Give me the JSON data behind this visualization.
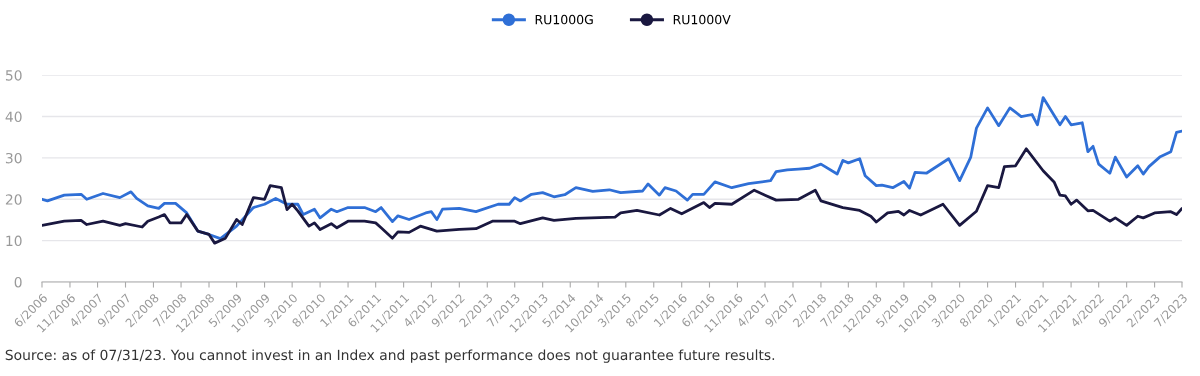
{
  "chart_data": {
    "type": "line",
    "legend": "top",
    "grid": "y",
    "marker": "none",
    "line_style": "solid",
    "ylim": [
      0,
      50
    ],
    "yticks": [
      0,
      10,
      20,
      30,
      40,
      50
    ],
    "xlim": [
      "2006-06",
      "2023-07"
    ],
    "xticks": [
      {
        "value": "2006-06",
        "label": "6/2006"
      },
      {
        "value": "2006-11",
        "label": "11/2006"
      },
      {
        "value": "2007-04",
        "label": "4/2007"
      },
      {
        "value": "2007-09",
        "label": "9/2007"
      },
      {
        "value": "2008-02",
        "label": "2/2008"
      },
      {
        "value": "2008-07",
        "label": "7/2008"
      },
      {
        "value": "2008-12",
        "label": "12/2008"
      },
      {
        "value": "2009-05",
        "label": "5/2009"
      },
      {
        "value": "2009-10",
        "label": "10/2009"
      },
      {
        "value": "2010-03",
        "label": "3/2010"
      },
      {
        "value": "2010-08",
        "label": "8/2010"
      },
      {
        "value": "2011-01",
        "label": "1/2011"
      },
      {
        "value": "2011-06",
        "label": "6/2011"
      },
      {
        "value": "2011-11",
        "label": "11/2011"
      },
      {
        "value": "2012-04",
        "label": "4/2012"
      },
      {
        "value": "2012-09",
        "label": "9/2012"
      },
      {
        "value": "2013-02",
        "label": "2/2013"
      },
      {
        "value": "2013-07",
        "label": "7/2013"
      },
      {
        "value": "2013-12",
        "label": "12/2013"
      },
      {
        "value": "2014-05",
        "label": "5/2014"
      },
      {
        "value": "2014-10",
        "label": "10/2014"
      },
      {
        "value": "2015-03",
        "label": "3/2015"
      },
      {
        "value": "2015-08",
        "label": "8/2015"
      },
      {
        "value": "2016-01",
        "label": "1/2016"
      },
      {
        "value": "2016-06",
        "label": "6/2016"
      },
      {
        "value": "2016-11",
        "label": "11/2016"
      },
      {
        "value": "2017-04",
        "label": "4/2017"
      },
      {
        "value": "2017-09",
        "label": "9/2017"
      },
      {
        "value": "2018-02",
        "label": "2/2018"
      },
      {
        "value": "2018-07",
        "label": "7/2018"
      },
      {
        "value": "2018-12",
        "label": "12/2018"
      },
      {
        "value": "2019-05",
        "label": "5/2019"
      },
      {
        "value": "2019-10",
        "label": "10/2019"
      },
      {
        "value": "2020-03",
        "label": "3/2020"
      },
      {
        "value": "2020-08",
        "label": "8/2020"
      },
      {
        "value": "2021-01",
        "label": "1/2021"
      },
      {
        "value": "2021-06",
        "label": "6/2021"
      },
      {
        "value": "2021-11",
        "label": "11/2021"
      },
      {
        "value": "2022-04",
        "label": "4/2022"
      },
      {
        "value": "2022-09",
        "label": "9/2022"
      },
      {
        "value": "2023-02",
        "label": "2/2023"
      },
      {
        "value": "2023-07",
        "label": "7/2023"
      }
    ],
    "annotations": [
      "Source: as of 07/31/23. You cannot invest in an Index and past performance does not guarantee future results."
    ],
    "series": [
      {
        "name": "RU1000G",
        "color": "#2f6fd6",
        "x": [
          "2006-06",
          "2006-07",
          "2006-10",
          "2007-01",
          "2007-02",
          "2007-05",
          "2007-08",
          "2007-10",
          "2007-11",
          "2008-01",
          "2008-03",
          "2008-04",
          "2008-06",
          "2008-08",
          "2008-10",
          "2008-12",
          "2009-02",
          "2009-05",
          "2009-08",
          "2009-10",
          "2009-12",
          "2010-02",
          "2010-04",
          "2010-05",
          "2010-07",
          "2010-08",
          "2010-10",
          "2010-11",
          "2011-01",
          "2011-04",
          "2011-06",
          "2011-07",
          "2011-09",
          "2011-10",
          "2011-12",
          "2012-03",
          "2012-04",
          "2012-05",
          "2012-06",
          "2012-09",
          "2012-12",
          "2013-04",
          "2013-06",
          "2013-07",
          "2013-08",
          "2013-10",
          "2013-12",
          "2014-02",
          "2014-04",
          "2014-06",
          "2014-09",
          "2014-12",
          "2015-02",
          "2015-06",
          "2015-07",
          "2015-09",
          "2015-10",
          "2015-12",
          "2016-02",
          "2016-03",
          "2016-05",
          "2016-07",
          "2016-10",
          "2017-01",
          "2017-05",
          "2017-06",
          "2017-08",
          "2017-10",
          "2017-12",
          "2018-02",
          "2018-05",
          "2018-06",
          "2018-07",
          "2018-09",
          "2018-10",
          "2018-12",
          "2019-01",
          "2019-03",
          "2019-05",
          "2019-06",
          "2019-07",
          "2019-09",
          "2020-01",
          "2020-03",
          "2020-05",
          "2020-06",
          "2020-08",
          "2020-10",
          "2020-12",
          "2021-02",
          "2021-04",
          "2021-05",
          "2021-06",
          "2021-09",
          "2021-10",
          "2021-11",
          "2022-01",
          "2022-02",
          "2022-03",
          "2022-04",
          "2022-06",
          "2022-07",
          "2022-09",
          "2022-11",
          "2022-12",
          "2023-01",
          "2023-03",
          "2023-05",
          "2023-06",
          "2023-07"
        ],
        "values": [
          20,
          19.6,
          21,
          21.2,
          20,
          21.4,
          20.4,
          21.8,
          20.2,
          18.4,
          17.8,
          19,
          19,
          16.7,
          12.3,
          11.5,
          10.5,
          13.5,
          18,
          18.8,
          20.2,
          18.8,
          18.8,
          16.3,
          17.6,
          15.5,
          17.6,
          17,
          18,
          18,
          17,
          18,
          14.6,
          16,
          15.1,
          16.7,
          17,
          15.1,
          17.6,
          17.8,
          17,
          18.8,
          18.8,
          20.4,
          19.6,
          21.2,
          21.6,
          20.6,
          21.1,
          22.8,
          21.9,
          22.3,
          21.6,
          22,
          23.7,
          21,
          22.8,
          22,
          19.8,
          21.2,
          21.2,
          24.2,
          22.8,
          23.8,
          24.5,
          26.7,
          27.1,
          27.3,
          27.5,
          28.5,
          26.1,
          29.4,
          28.8,
          29.8,
          25.7,
          23.3,
          23.4,
          22.8,
          24.3,
          22.7,
          26.5,
          26.3,
          29.8,
          24.5,
          30.2,
          37.2,
          42.1,
          37.8,
          42.1,
          40,
          40.5,
          38,
          44.6,
          38,
          40,
          38,
          38.5,
          31.5,
          32.8,
          28.5,
          26.3,
          30.2,
          25.4,
          28.1,
          26.1,
          27.9,
          30.2,
          31.5,
          36.2,
          36.5
        ]
      },
      {
        "name": "RU1000V",
        "color": "#1a1840",
        "x": [
          "2006-06",
          "2006-10",
          "2007-01",
          "2007-02",
          "2007-05",
          "2007-08",
          "2007-09",
          "2007-12",
          "2008-01",
          "2008-03",
          "2008-04",
          "2008-05",
          "2008-07",
          "2008-08",
          "2008-10",
          "2008-12",
          "2009-01",
          "2009-03",
          "2009-05",
          "2009-06",
          "2009-08",
          "2009-10",
          "2009-11",
          "2010-01",
          "2010-02",
          "2010-03",
          "2010-04",
          "2010-06",
          "2010-07",
          "2010-08",
          "2010-10",
          "2010-11",
          "2011-01",
          "2011-04",
          "2011-06",
          "2011-07",
          "2011-09",
          "2011-10",
          "2011-12",
          "2012-02",
          "2012-05",
          "2012-09",
          "2012-12",
          "2013-03",
          "2013-07",
          "2013-08",
          "2013-12",
          "2014-02",
          "2014-06",
          "2015-01",
          "2015-02",
          "2015-05",
          "2015-09",
          "2015-11",
          "2016-01",
          "2016-05",
          "2016-06",
          "2016-07",
          "2016-10",
          "2017-02",
          "2017-04",
          "2017-06",
          "2017-10",
          "2018-01",
          "2018-02",
          "2018-06",
          "2018-09",
          "2018-11",
          "2018-12",
          "2019-02",
          "2019-04",
          "2019-05",
          "2019-06",
          "2019-08",
          "2019-12",
          "2020-03",
          "2020-06",
          "2020-08",
          "2020-10",
          "2020-11",
          "2021-01",
          "2021-03",
          "2021-06",
          "2021-08",
          "2021-09",
          "2021-10",
          "2021-11",
          "2021-12",
          "2022-02",
          "2022-03",
          "2022-06",
          "2022-07",
          "2022-09",
          "2022-11",
          "2022-12",
          "2023-02",
          "2023-05",
          "2023-06",
          "2023-07"
        ],
        "values": [
          13.7,
          14.7,
          14.9,
          13.9,
          14.7,
          13.7,
          14.1,
          13.3,
          14.7,
          15.7,
          16.3,
          14.3,
          14.3,
          16.3,
          12.3,
          11.5,
          9.4,
          10.6,
          15.1,
          13.9,
          20.4,
          20,
          23.3,
          22.8,
          17.5,
          18.8,
          17.2,
          13.5,
          14.3,
          12.7,
          14.1,
          13.1,
          14.7,
          14.7,
          14.3,
          13.1,
          10.6,
          12.1,
          12,
          13.5,
          12.3,
          12.7,
          12.9,
          14.7,
          14.7,
          14.1,
          15.5,
          14.9,
          15.4,
          15.7,
          16.7,
          17.3,
          16.2,
          17.8,
          16.5,
          19.2,
          18,
          19,
          18.8,
          22.2,
          21,
          19.8,
          20,
          22.2,
          19.6,
          18,
          17.3,
          15.9,
          14.5,
          16.7,
          17.1,
          16.2,
          17.3,
          16.2,
          18.8,
          13.7,
          17.1,
          23.3,
          22.8,
          27.9,
          28.1,
          32.2,
          26.9,
          24.1,
          21,
          20.8,
          18.8,
          19.8,
          17.2,
          17.3,
          14.7,
          15.5,
          13.7,
          15.9,
          15.5,
          16.7,
          17,
          16.3,
          17.8
        ]
      }
    ]
  }
}
